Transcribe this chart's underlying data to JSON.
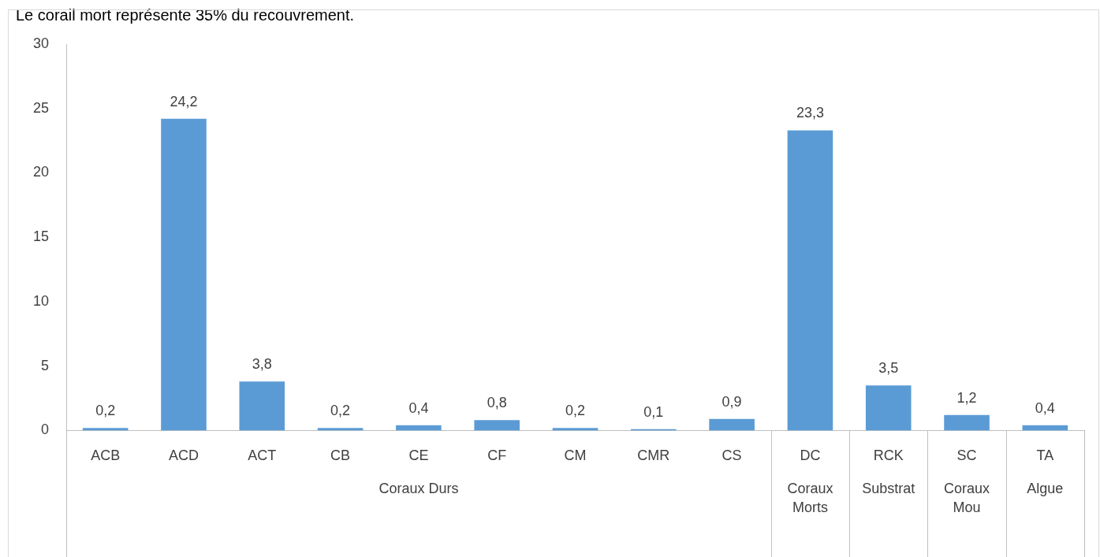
{
  "chart_data": {
    "type": "bar",
    "title": "Le corail mort représente 35% du recouvrement.",
    "categories": [
      "ACB",
      "ACD",
      "ACT",
      "CB",
      "CE",
      "CF",
      "CM",
      "CMR",
      "CS",
      "DC",
      "RCK",
      "SC",
      "TA"
    ],
    "values": [
      0.2,
      24.2,
      3.8,
      0.2,
      0.4,
      0.8,
      0.2,
      0.1,
      0.9,
      23.3,
      3.5,
      1.2,
      0.4
    ],
    "value_labels": [
      "0,2",
      "24,2",
      "3,8",
      "0,2",
      "0,4",
      "0,8",
      "0,2",
      "0,1",
      "0,9",
      "23,3",
      "3,5",
      "1,2",
      "0,4"
    ],
    "color": "#5b9bd5",
    "ylim": [
      0,
      30
    ],
    "yticks": [
      0,
      5,
      10,
      15,
      20,
      25,
      30
    ],
    "grid": false,
    "legend": false,
    "annotations": [
      "Coraux Durs",
      "Coraux Morts",
      "Substrat",
      "Coraux Mou",
      "Algue"
    ]
  }
}
